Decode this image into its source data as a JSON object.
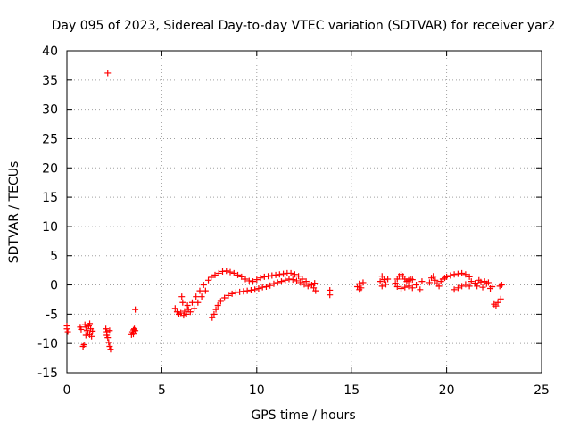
{
  "chart_data": {
    "type": "scatter",
    "title": "Day 095 of 2023, Sidereal Day-to-day VTEC variation (SDTVAR) for receiver yar2",
    "xlabel": "GPS time / hours",
    "ylabel": "SDTVAR / TECUs",
    "xlim": [
      0,
      25
    ],
    "ylim": [
      -15,
      40
    ],
    "xticks": [
      0,
      5,
      10,
      15,
      20,
      25
    ],
    "yticks": [
      -15,
      -10,
      -5,
      0,
      5,
      10,
      15,
      20,
      25,
      30,
      35,
      40
    ],
    "grid": true,
    "marker": "+",
    "color": "#ff0000",
    "series": [
      {
        "name": "SDTVAR",
        "points": [
          [
            0.0,
            -7.0
          ],
          [
            0.0,
            -7.5
          ],
          [
            0.05,
            -8.0
          ],
          [
            0.7,
            -7.2
          ],
          [
            0.75,
            -7.6
          ],
          [
            0.85,
            -10.5
          ],
          [
            0.9,
            -10.2
          ],
          [
            0.95,
            -6.8
          ],
          [
            1.0,
            -7.2
          ],
          [
            1.05,
            -7.8
          ],
          [
            1.1,
            -8.2
          ],
          [
            1.15,
            -7.0
          ],
          [
            1.2,
            -8.5
          ],
          [
            1.25,
            -7.5
          ],
          [
            1.3,
            -8.8
          ],
          [
            1.35,
            -7.9
          ],
          [
            1.0,
            -8.6
          ],
          [
            1.2,
            -6.6
          ],
          [
            2.15,
            36.2
          ],
          [
            2.05,
            -7.5
          ],
          [
            2.1,
            -8.0
          ],
          [
            2.15,
            -9.0
          ],
          [
            2.2,
            -9.8
          ],
          [
            2.25,
            -10.5
          ],
          [
            2.3,
            -11.0
          ],
          [
            2.1,
            -8.6
          ],
          [
            2.25,
            -7.8
          ],
          [
            3.4,
            -8.5
          ],
          [
            3.45,
            -8.0
          ],
          [
            3.5,
            -7.7
          ],
          [
            3.55,
            -7.5
          ],
          [
            3.6,
            -7.8
          ],
          [
            3.5,
            -8.4
          ],
          [
            3.6,
            -4.2
          ],
          [
            5.7,
            -4.0
          ],
          [
            5.8,
            -4.6
          ],
          [
            5.9,
            -5.0
          ],
          [
            6.0,
            -4.8
          ],
          [
            6.05,
            -2.0
          ],
          [
            6.1,
            -3.0
          ],
          [
            6.15,
            -5.2
          ],
          [
            6.2,
            -4.5
          ],
          [
            6.3,
            -5.0
          ],
          [
            6.35,
            -3.5
          ],
          [
            6.4,
            -4.2
          ],
          [
            6.5,
            -4.6
          ],
          [
            6.6,
            -3.0
          ],
          [
            6.7,
            -4.0
          ],
          [
            6.8,
            -2.0
          ],
          [
            6.9,
            -3.0
          ],
          [
            7.0,
            -1.0
          ],
          [
            7.1,
            -2.0
          ],
          [
            7.2,
            0.0
          ],
          [
            7.3,
            -1.0
          ],
          [
            7.45,
            0.8
          ],
          [
            7.6,
            1.3
          ],
          [
            7.8,
            1.7
          ],
          [
            8.0,
            2.0
          ],
          [
            8.2,
            2.3
          ],
          [
            8.4,
            2.4
          ],
          [
            8.6,
            2.2
          ],
          [
            8.8,
            2.0
          ],
          [
            9.0,
            1.7
          ],
          [
            9.2,
            1.4
          ],
          [
            9.4,
            1.0
          ],
          [
            9.6,
            0.7
          ],
          [
            9.8,
            0.6
          ],
          [
            10.0,
            0.9
          ],
          [
            10.2,
            1.2
          ],
          [
            10.4,
            1.4
          ],
          [
            10.6,
            1.5
          ],
          [
            10.8,
            1.6
          ],
          [
            11.0,
            1.7
          ],
          [
            11.2,
            1.8
          ],
          [
            11.4,
            1.9
          ],
          [
            11.6,
            2.0
          ],
          [
            11.8,
            2.0
          ],
          [
            12.0,
            1.8
          ],
          [
            12.2,
            1.5
          ],
          [
            12.4,
            1.0
          ],
          [
            12.6,
            0.6
          ],
          [
            12.8,
            0.2
          ],
          [
            7.65,
            -5.6
          ],
          [
            7.75,
            -5.0
          ],
          [
            7.85,
            -4.2
          ],
          [
            7.95,
            -3.5
          ],
          [
            8.1,
            -2.8
          ],
          [
            8.3,
            -2.2
          ],
          [
            8.5,
            -1.8
          ],
          [
            8.7,
            -1.5
          ],
          [
            8.9,
            -1.3
          ],
          [
            9.1,
            -1.2
          ],
          [
            9.3,
            -1.1
          ],
          [
            9.5,
            -1.0
          ],
          [
            9.7,
            -0.9
          ],
          [
            9.9,
            -0.8
          ],
          [
            10.1,
            -0.6
          ],
          [
            10.3,
            -0.4
          ],
          [
            10.5,
            -0.3
          ],
          [
            10.7,
            -0.1
          ],
          [
            10.9,
            0.2
          ],
          [
            11.1,
            0.4
          ],
          [
            11.3,
            0.6
          ],
          [
            11.5,
            0.8
          ],
          [
            11.7,
            1.0
          ],
          [
            11.9,
            0.9
          ],
          [
            12.1,
            0.7
          ],
          [
            12.3,
            0.4
          ],
          [
            12.5,
            0.1
          ],
          [
            12.7,
            -0.2
          ],
          [
            12.9,
            0.0
          ],
          [
            13.0,
            -0.5
          ],
          [
            13.1,
            -1.0
          ],
          [
            13.05,
            0.3
          ],
          [
            13.85,
            -1.7
          ],
          [
            13.85,
            -0.9
          ],
          [
            15.3,
            -0.3
          ],
          [
            15.4,
            0.2
          ],
          [
            15.5,
            -0.5
          ],
          [
            15.6,
            0.4
          ],
          [
            15.4,
            -0.8
          ],
          [
            16.5,
            0.6
          ],
          [
            16.6,
            1.5
          ],
          [
            16.7,
            0.9
          ],
          [
            16.8,
            0.1
          ],
          [
            16.9,
            1.0
          ],
          [
            16.6,
            -0.2
          ],
          [
            17.3,
            0.3
          ],
          [
            17.4,
            1.0
          ],
          [
            17.5,
            1.5
          ],
          [
            17.6,
            1.8
          ],
          [
            17.7,
            1.5
          ],
          [
            17.8,
            1.0
          ],
          [
            17.9,
            0.6
          ],
          [
            18.0,
            0.8
          ],
          [
            18.1,
            1.0
          ],
          [
            18.2,
            0.9
          ],
          [
            17.4,
            -0.3
          ],
          [
            17.6,
            -0.6
          ],
          [
            17.8,
            -0.4
          ],
          [
            18.0,
            -0.2
          ],
          [
            18.2,
            -0.5
          ],
          [
            18.4,
            0.0
          ],
          [
            18.6,
            -0.8
          ],
          [
            18.7,
            0.6
          ],
          [
            19.1,
            0.4
          ],
          [
            19.2,
            1.2
          ],
          [
            19.3,
            1.5
          ],
          [
            19.4,
            0.8
          ],
          [
            19.5,
            0.2
          ],
          [
            19.6,
            -0.2
          ],
          [
            19.7,
            0.6
          ],
          [
            19.8,
            1.0
          ],
          [
            19.9,
            1.2
          ],
          [
            20.0,
            1.4
          ],
          [
            20.2,
            1.6
          ],
          [
            20.4,
            1.8
          ],
          [
            20.6,
            1.9
          ],
          [
            20.8,
            2.0
          ],
          [
            21.0,
            1.8
          ],
          [
            21.2,
            1.4
          ],
          [
            21.3,
            0.6
          ],
          [
            20.4,
            -0.8
          ],
          [
            20.6,
            -0.5
          ],
          [
            20.8,
            -0.2
          ],
          [
            21.0,
            0.1
          ],
          [
            21.2,
            -0.2
          ],
          [
            21.5,
            0.3
          ],
          [
            21.6,
            -0.2
          ],
          [
            21.7,
            0.8
          ],
          [
            21.8,
            0.5
          ],
          [
            21.9,
            -0.4
          ],
          [
            22.0,
            0.6
          ],
          [
            22.1,
            0.2
          ],
          [
            22.2,
            0.4
          ],
          [
            22.3,
            -0.6
          ],
          [
            22.4,
            -0.3
          ],
          [
            22.5,
            -3.3
          ],
          [
            22.6,
            -3.6
          ],
          [
            22.7,
            -3.0
          ],
          [
            22.8,
            -0.2
          ],
          [
            22.9,
            0.0
          ],
          [
            22.85,
            -2.4
          ]
        ]
      }
    ]
  }
}
